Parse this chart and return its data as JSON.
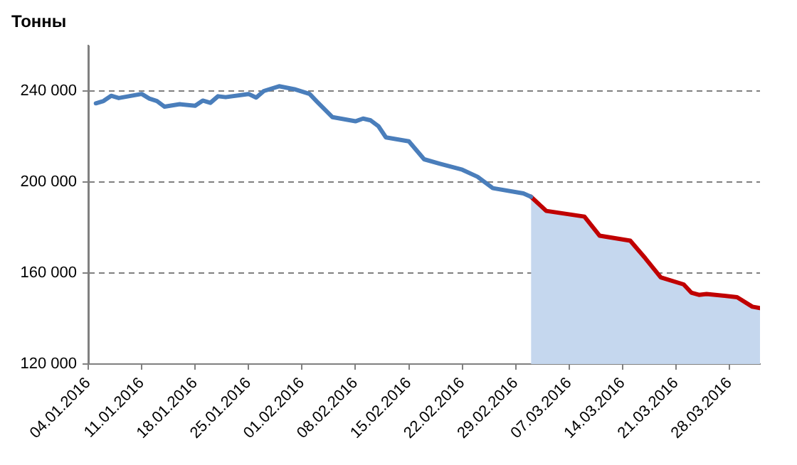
{
  "chart_data": {
    "type": "line",
    "ylabel": "Тонны",
    "xlim": [
      "2016-01-04",
      "2016-04-01"
    ],
    "xticks": [
      {
        "value": "2016-01-04",
        "label": "04.01.2016"
      },
      {
        "value": "2016-01-11",
        "label": "11.01.2016"
      },
      {
        "value": "2016-01-18",
        "label": "18.01.2016"
      },
      {
        "value": "2016-01-25",
        "label": "25.01.2016"
      },
      {
        "value": "2016-02-01",
        "label": "01.02.2016"
      },
      {
        "value": "2016-02-08",
        "label": "08.02.2016"
      },
      {
        "value": "2016-02-15",
        "label": "15.02.2016"
      },
      {
        "value": "2016-02-22",
        "label": "22.02.2016"
      },
      {
        "value": "2016-02-29",
        "label": "29.02.2016"
      },
      {
        "value": "2016-03-07",
        "label": "07.03.2016"
      },
      {
        "value": "2016-03-14",
        "label": "14.03.2016"
      },
      {
        "value": "2016-03-21",
        "label": "21.03.2016"
      },
      {
        "value": "2016-03-28",
        "label": "28.03.2016"
      }
    ],
    "ylim": [
      120000,
      260000
    ],
    "yticks": [
      {
        "value": 120000,
        "label": "120 000"
      },
      {
        "value": 160000,
        "label": "160 000"
      },
      {
        "value": 200000,
        "label": "200 000"
      },
      {
        "value": 240000,
        "label": "240 000"
      }
    ],
    "grid": "y",
    "legend": false,
    "line_style": "solid",
    "marker": "none",
    "series": [
      {
        "type": "area",
        "color": "#c5d7ee",
        "x": [
          "2016-03-02",
          "2016-03-04",
          "2016-03-09",
          "2016-03-11",
          "2016-03-15",
          "2016-03-17",
          "2016-03-19",
          "2016-03-22",
          "2016-03-23",
          "2016-03-24",
          "2016-03-25",
          "2016-03-29",
          "2016-03-31",
          "2016-04-01"
        ],
        "values": [
          193500,
          187300,
          184800,
          176400,
          174200,
          166400,
          158100,
          155000,
          151400,
          150400,
          150800,
          149400,
          145200,
          144600
        ]
      },
      {
        "type": "line",
        "color": "#4a7ebb",
        "x": [
          "2016-01-05",
          "2016-01-06",
          "2016-01-07",
          "2016-01-08",
          "2016-01-11",
          "2016-01-12",
          "2016-01-13",
          "2016-01-14",
          "2016-01-16",
          "2016-01-18",
          "2016-01-19",
          "2016-01-20",
          "2016-01-21",
          "2016-01-22",
          "2016-01-25",
          "2016-01-26",
          "2016-01-27",
          "2016-01-29",
          "2016-01-31",
          "2016-02-02",
          "2016-02-03",
          "2016-02-05",
          "2016-02-08",
          "2016-02-09",
          "2016-02-10",
          "2016-02-11",
          "2016-02-12",
          "2016-02-15",
          "2016-02-17",
          "2016-02-19",
          "2016-02-22",
          "2016-02-24",
          "2016-02-26",
          "2016-03-01",
          "2016-03-02"
        ],
        "values": [
          234600,
          235600,
          237900,
          236900,
          238700,
          236700,
          235600,
          233100,
          234200,
          233500,
          235800,
          234800,
          237700,
          237300,
          238700,
          237100,
          240000,
          242100,
          240800,
          238700,
          235200,
          228500,
          226700,
          227900,
          227100,
          224600,
          219600,
          217900,
          210000,
          208100,
          205400,
          202300,
          197300,
          195000,
          193500
        ]
      },
      {
        "type": "line",
        "color": "#c00000",
        "x": [
          "2016-03-02",
          "2016-03-04",
          "2016-03-09",
          "2016-03-11",
          "2016-03-15",
          "2016-03-17",
          "2016-03-19",
          "2016-03-22",
          "2016-03-23",
          "2016-03-24",
          "2016-03-25",
          "2016-03-29",
          "2016-03-31",
          "2016-04-01"
        ],
        "values": [
          193500,
          187300,
          184800,
          176400,
          174200,
          166400,
          158100,
          155000,
          151400,
          150400,
          150800,
          149400,
          145200,
          144600
        ]
      }
    ]
  }
}
